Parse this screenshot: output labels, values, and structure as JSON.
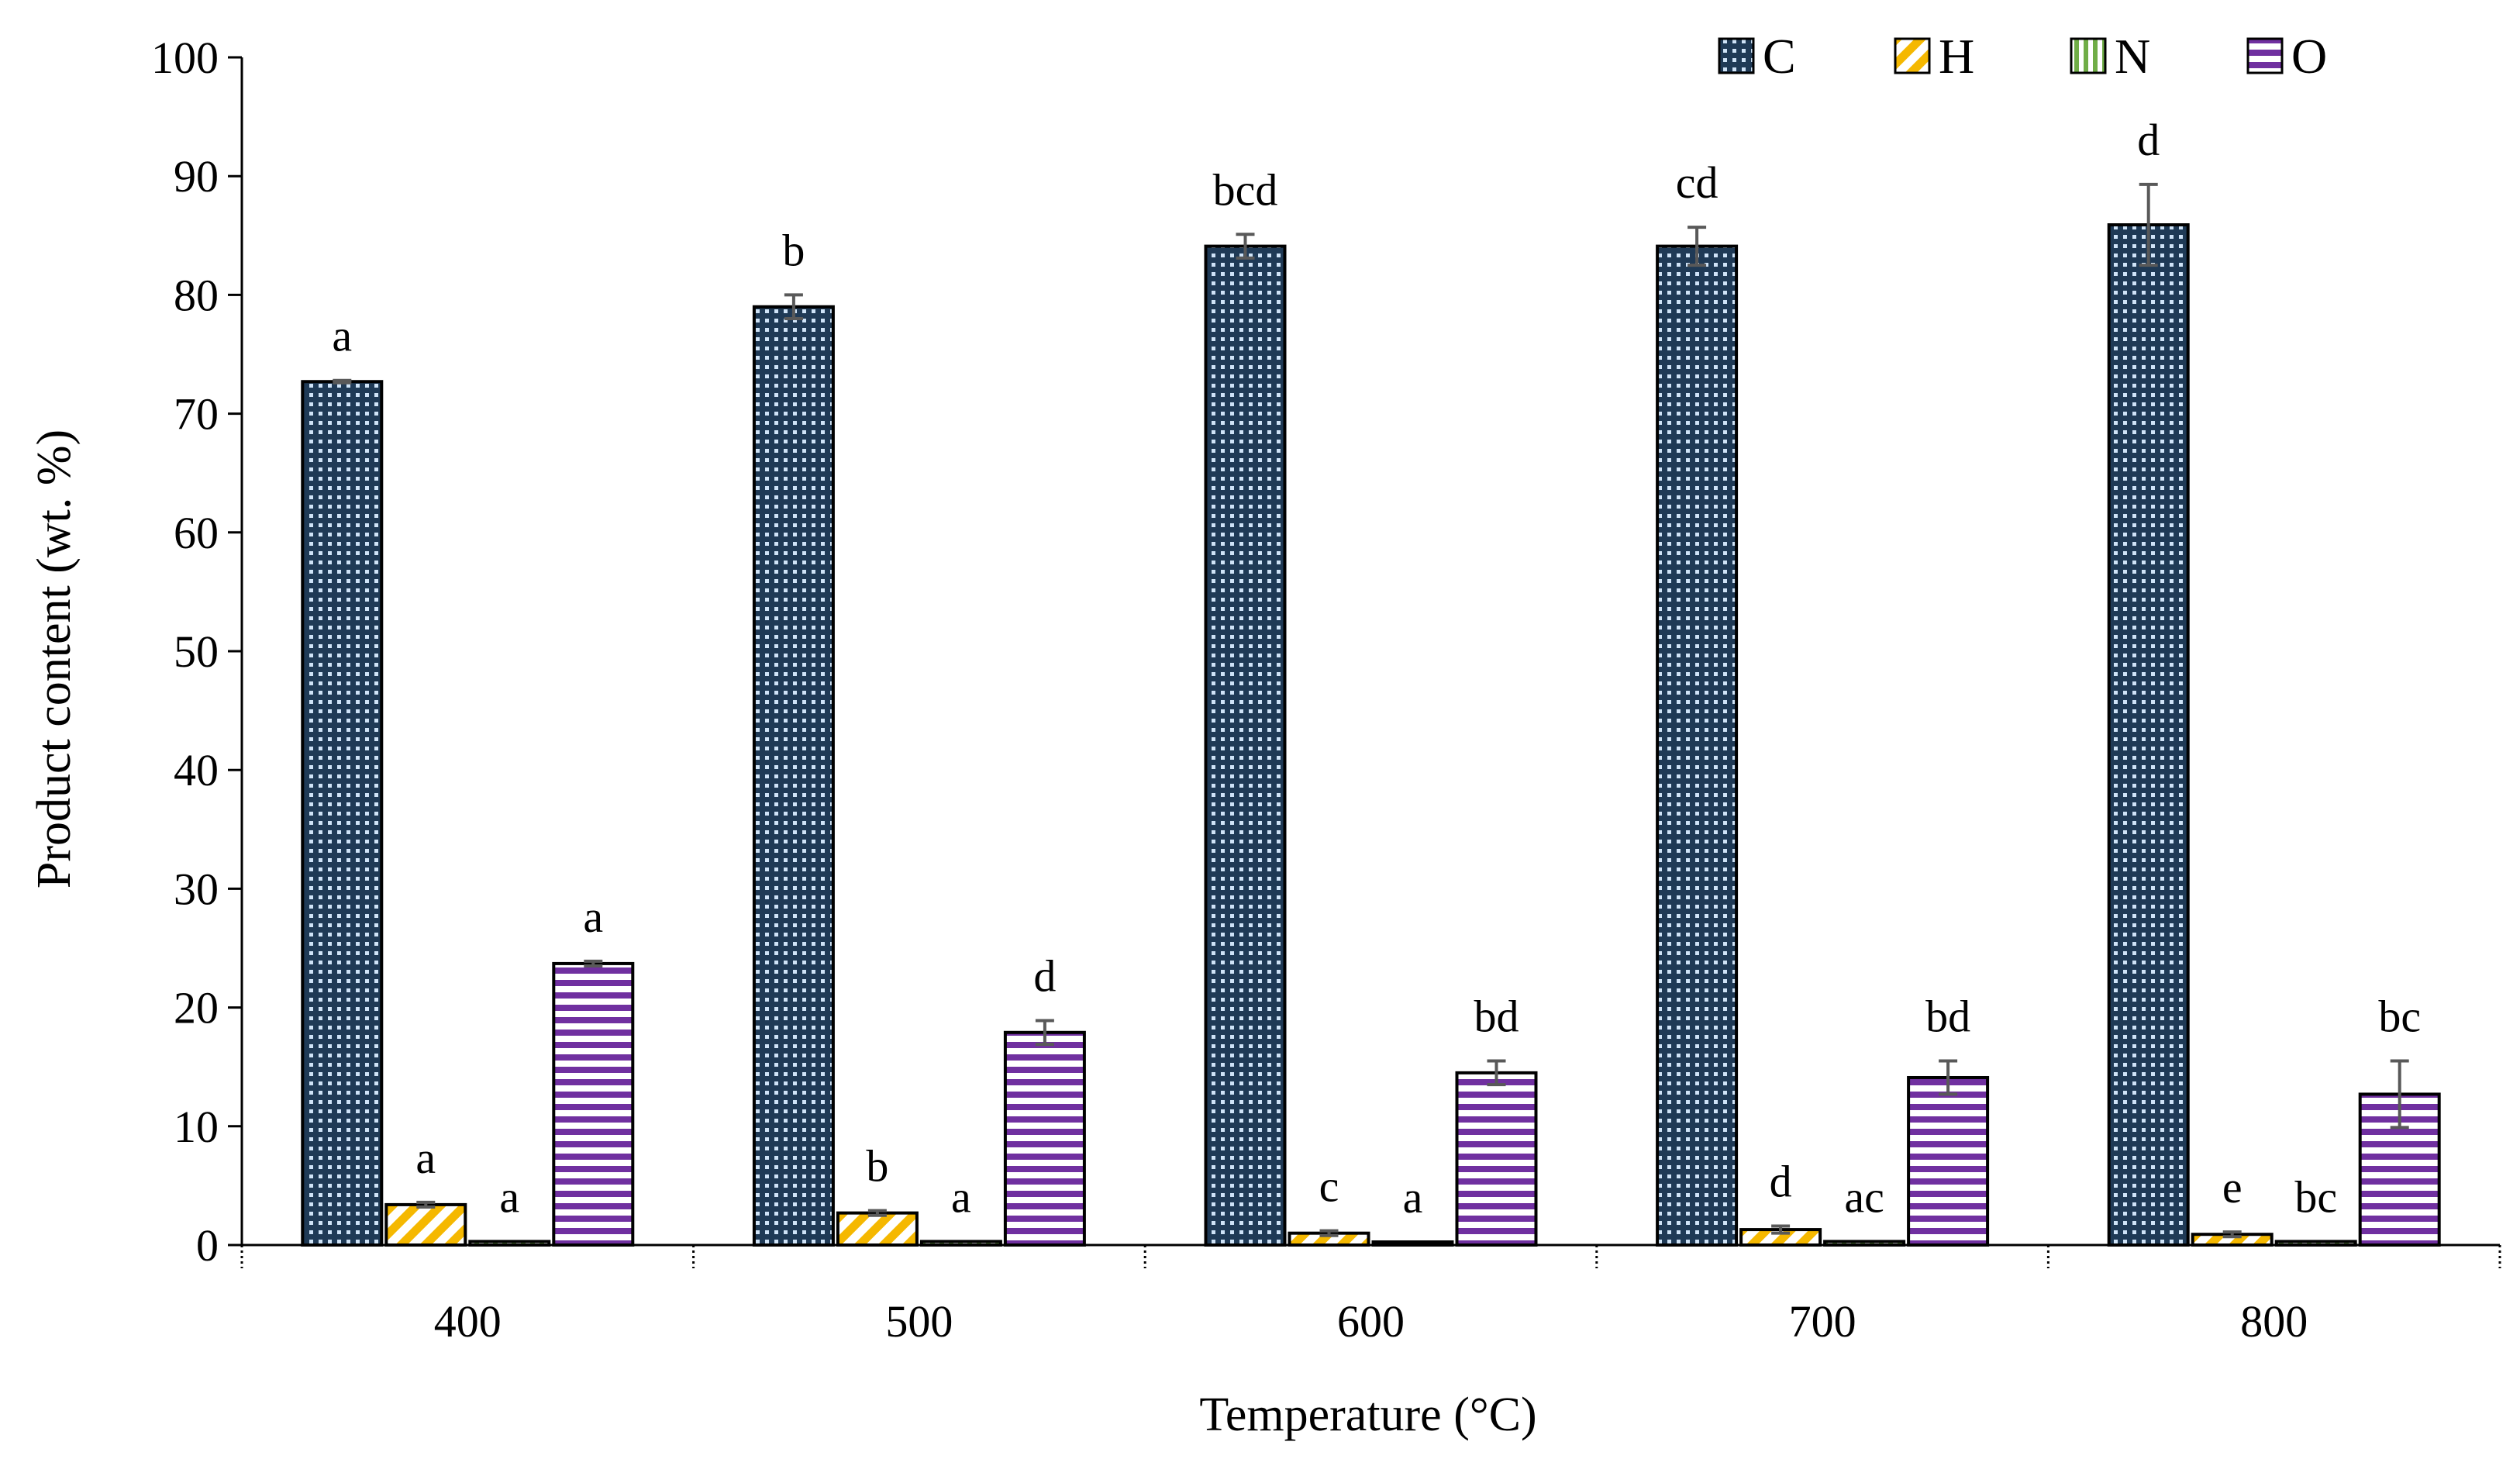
{
  "chart_data": {
    "type": "bar",
    "title": "",
    "xlabel": "Temperature (°C)",
    "ylabel": "Product content (wt. %)",
    "ylim": [
      0,
      100
    ],
    "yticks": [
      "0",
      "10",
      "20",
      "30",
      "40",
      "50",
      "60",
      "70",
      "80",
      "90",
      "100"
    ],
    "categories": [
      "400",
      "500",
      "600",
      "700",
      "800"
    ],
    "legend_position": "top-right",
    "series": [
      {
        "name": "C",
        "color": "#1f3a56",
        "pattern": "dotted-grid",
        "values": [
          72.7,
          79.0,
          84.1,
          84.1,
          85.9
        ],
        "errors": [
          0.1,
          1.0,
          1.0,
          1.6,
          3.4
        ],
        "significance": [
          "a",
          "b",
          "bcd",
          "cd",
          "d"
        ]
      },
      {
        "name": "H",
        "color": "#f5b800",
        "pattern": "diagonal-stripes",
        "values": [
          3.4,
          2.7,
          1.0,
          1.3,
          0.9
        ],
        "errors": [
          0.2,
          0.2,
          0.2,
          0.3,
          0.2
        ],
        "significance": [
          "a",
          "b",
          "c",
          "d",
          "e"
        ]
      },
      {
        "name": "N",
        "color": "#70ad47",
        "pattern": "vertical-stripes",
        "values": [
          0.3,
          0.3,
          0.2,
          0.3,
          0.3
        ],
        "errors": [
          0.0,
          0.0,
          0.0,
          0.0,
          0.0
        ],
        "significance": [
          "a",
          "a",
          "a",
          "ac",
          "bc"
        ]
      },
      {
        "name": "O",
        "color": "#7030a0",
        "pattern": "horizontal-stripes",
        "values": [
          23.7,
          17.9,
          14.5,
          14.1,
          12.7
        ],
        "errors": [
          0.2,
          1.0,
          1.0,
          1.4,
          2.8
        ],
        "significance": [
          "a",
          "d",
          "bd",
          "bd",
          "bc"
        ]
      }
    ]
  }
}
